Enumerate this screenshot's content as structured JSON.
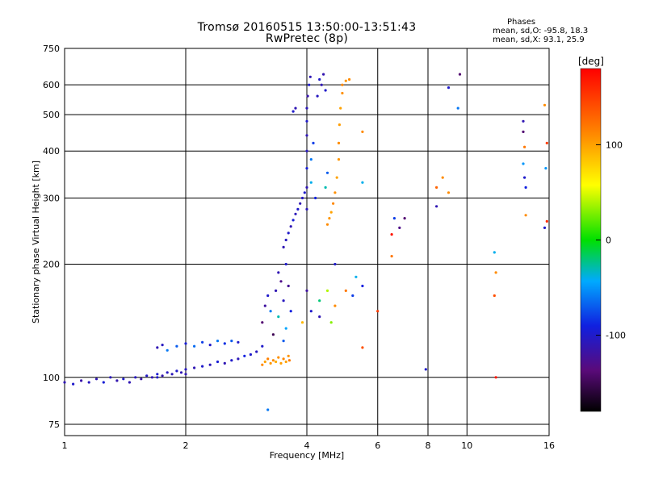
{
  "chart_data": {
    "type": "scatter",
    "title": "Tromsø 20160515 13:50:00-13:51:43",
    "subtitle": "RwPretec (8p)",
    "annotation": {
      "heading": "Phases",
      "line_o": "mean, sd,O: -95.8, 18.3",
      "line_x": "mean, sd,X:  93.1, 25.9"
    },
    "xlabel": "Frequency [MHz]",
    "ylabel": "Stationary phase Virtual Height [km]",
    "xscale": "log",
    "yscale": "log",
    "xlim": [
      1,
      16
    ],
    "ylim": [
      70,
      750
    ],
    "xticks": [
      1,
      2,
      4,
      6,
      8,
      10,
      16
    ],
    "yticks": [
      75,
      100,
      200,
      300,
      400,
      500,
      600,
      750
    ],
    "grid": true,
    "colorbar": {
      "label": "[deg]",
      "range": [
        -180,
        180
      ],
      "ticks": [
        100,
        0,
        -100
      ],
      "colormap": "rainbow"
    },
    "series": [
      {
        "points": [
          [
            1.0,
            97,
            -110
          ],
          [
            1.05,
            96,
            -100
          ],
          [
            1.1,
            98,
            -115
          ],
          [
            1.15,
            97,
            -105
          ],
          [
            1.2,
            99,
            -110
          ],
          [
            1.25,
            97,
            -95
          ],
          [
            1.3,
            100,
            -108
          ],
          [
            1.35,
            98,
            -112
          ],
          [
            1.4,
            99,
            -100
          ],
          [
            1.45,
            97,
            -110
          ],
          [
            1.5,
            100,
            -105
          ],
          [
            1.55,
            99,
            -115
          ],
          [
            1.6,
            101,
            -102
          ],
          [
            1.65,
            100,
            -110
          ],
          [
            1.7,
            102,
            -98
          ],
          [
            1.75,
            101,
            -112
          ],
          [
            1.8,
            103,
            -105
          ],
          [
            1.85,
            102,
            -108
          ],
          [
            1.9,
            104,
            -100
          ],
          [
            1.95,
            103,
            -110
          ],
          [
            2.0,
            105,
            -105
          ],
          [
            2.1,
            106,
            -110
          ],
          [
            2.2,
            107,
            -100
          ],
          [
            2.3,
            108,
            -108
          ],
          [
            2.4,
            110,
            -95
          ],
          [
            2.5,
            109,
            -110
          ],
          [
            2.6,
            111,
            -100
          ],
          [
            2.7,
            112,
            -108
          ],
          [
            2.8,
            114,
            -90
          ],
          [
            2.9,
            115,
            -100
          ],
          [
            3.0,
            117,
            -105
          ],
          [
            3.1,
            121,
            -100
          ],
          [
            1.7,
            120,
            -110
          ],
          [
            1.75,
            122,
            -105
          ],
          [
            1.8,
            118,
            -60
          ],
          [
            1.9,
            121,
            -70
          ],
          [
            2.0,
            123,
            -95
          ],
          [
            2.1,
            121,
            -65
          ],
          [
            2.2,
            124,
            -80
          ],
          [
            2.3,
            122,
            -100
          ],
          [
            2.4,
            125,
            -60
          ],
          [
            2.5,
            123,
            -85
          ],
          [
            2.6,
            125,
            -70
          ],
          [
            2.7,
            124,
            -100
          ],
          [
            3.1,
            108,
            110
          ],
          [
            3.15,
            110,
            100
          ],
          [
            3.2,
            112,
            115
          ],
          [
            3.25,
            109,
            105
          ],
          [
            3.3,
            111,
            110
          ],
          [
            3.35,
            110,
            95
          ],
          [
            3.4,
            113,
            108
          ],
          [
            3.45,
            109,
            102
          ],
          [
            3.5,
            112,
            112
          ],
          [
            3.55,
            110,
            100
          ],
          [
            3.6,
            114,
            106
          ],
          [
            3.62,
            111,
            118
          ],
          [
            3.1,
            140,
            -140
          ],
          [
            3.15,
            155,
            -120
          ],
          [
            3.2,
            165,
            -100
          ],
          [
            3.25,
            150,
            -60
          ],
          [
            3.3,
            130,
            -150
          ],
          [
            3.35,
            170,
            -110
          ],
          [
            3.4,
            145,
            -30
          ],
          [
            3.45,
            180,
            -130
          ],
          [
            3.5,
            160,
            -105
          ],
          [
            3.55,
            135,
            -45
          ],
          [
            3.6,
            175,
            -125
          ],
          [
            3.65,
            150,
            -90
          ],
          [
            3.4,
            190,
            -110
          ],
          [
            3.5,
            125,
            -70
          ],
          [
            3.55,
            200,
            -100
          ],
          [
            3.5,
            222,
            -110
          ],
          [
            3.55,
            232,
            -105
          ],
          [
            3.6,
            242,
            -100
          ],
          [
            3.65,
            252,
            -110
          ],
          [
            3.7,
            262,
            -95
          ],
          [
            3.75,
            272,
            -108
          ],
          [
            3.8,
            280,
            -100
          ],
          [
            3.85,
            290,
            -110
          ],
          [
            3.9,
            300,
            -105
          ],
          [
            3.95,
            310,
            -100
          ],
          [
            4.0,
            280,
            -108
          ],
          [
            4.0,
            320,
            -110
          ],
          [
            4.0,
            360,
            -95
          ],
          [
            4.0,
            400,
            -105
          ],
          [
            4.0,
            440,
            -110
          ],
          [
            4.0,
            480,
            -100
          ],
          [
            4.0,
            520,
            -108
          ],
          [
            4.02,
            560,
            -115
          ],
          [
            4.05,
            600,
            -100
          ],
          [
            4.08,
            630,
            -110
          ],
          [
            4.1,
            380,
            -60
          ],
          [
            4.15,
            420,
            -80
          ],
          [
            4.1,
            330,
            -40
          ],
          [
            4.2,
            300,
            -90
          ],
          [
            4.25,
            560,
            -105
          ],
          [
            4.3,
            620,
            -100
          ],
          [
            4.35,
            600,
            -110
          ],
          [
            4.4,
            640,
            -112
          ],
          [
            4.45,
            580,
            -100
          ],
          [
            4.5,
            350,
            -70
          ],
          [
            4.45,
            320,
            -30
          ],
          [
            3.7,
            510,
            -100
          ],
          [
            3.75,
            520,
            -110
          ],
          [
            4.5,
            255,
            110
          ],
          [
            4.55,
            265,
            105
          ],
          [
            4.6,
            275,
            100
          ],
          [
            4.65,
            290,
            112
          ],
          [
            4.7,
            310,
            108
          ],
          [
            4.75,
            340,
            100
          ],
          [
            4.8,
            380,
            105
          ],
          [
            4.8,
            420,
            110
          ],
          [
            4.82,
            470,
            102
          ],
          [
            4.85,
            520,
            100
          ],
          [
            4.9,
            570,
            108
          ],
          [
            4.9,
            600,
            112
          ],
          [
            5.0,
            615,
            105
          ],
          [
            5.1,
            620,
            110
          ],
          [
            4.1,
            150,
            -100
          ],
          [
            4.3,
            160,
            -20
          ],
          [
            4.5,
            170,
            40
          ],
          [
            4.7,
            155,
            110
          ],
          [
            5.0,
            170,
            120
          ],
          [
            5.3,
            185,
            -40
          ],
          [
            5.5,
            175,
            -90
          ],
          [
            4.3,
            145,
            -110
          ],
          [
            4.6,
            140,
            30
          ],
          [
            5.2,
            165,
            -80
          ],
          [
            4.0,
            170,
            -120
          ],
          [
            3.9,
            140,
            90
          ],
          [
            4.7,
            200,
            -100
          ],
          [
            5.5,
            120,
            140
          ],
          [
            6.0,
            150,
            150
          ],
          [
            6.5,
            210,
            120
          ],
          [
            6.5,
            240,
            170
          ],
          [
            6.8,
            250,
            -130
          ],
          [
            7.0,
            265,
            -140
          ],
          [
            6.6,
            265,
            -80
          ],
          [
            5.5,
            330,
            -40
          ],
          [
            5.5,
            450,
            110
          ],
          [
            8.4,
            320,
            130
          ],
          [
            8.7,
            340,
            110
          ],
          [
            8.4,
            285,
            -110
          ],
          [
            9.0,
            310,
            110
          ],
          [
            9.0,
            590,
            -100
          ],
          [
            9.5,
            520,
            -60
          ],
          [
            9.6,
            640,
            -140
          ],
          [
            7.9,
            105,
            -100
          ],
          [
            3.2,
            82,
            -60
          ],
          [
            2.0,
            102,
            -110
          ],
          [
            1.7,
            100,
            -100
          ],
          [
            11.7,
            215,
            -40
          ],
          [
            11.8,
            190,
            110
          ],
          [
            11.7,
            165,
            140
          ],
          [
            11.8,
            100,
            170
          ],
          [
            13.8,
            480,
            -110
          ],
          [
            13.8,
            450,
            -140
          ],
          [
            13.9,
            410,
            120
          ],
          [
            13.8,
            370,
            -50
          ],
          [
            13.9,
            340,
            -100
          ],
          [
            14.0,
            320,
            -90
          ],
          [
            14.0,
            270,
            110
          ],
          [
            15.6,
            530,
            110
          ],
          [
            15.8,
            420,
            150
          ],
          [
            15.7,
            360,
            -50
          ],
          [
            15.6,
            250,
            -100
          ],
          [
            15.8,
            260,
            160
          ]
        ]
      }
    ]
  }
}
